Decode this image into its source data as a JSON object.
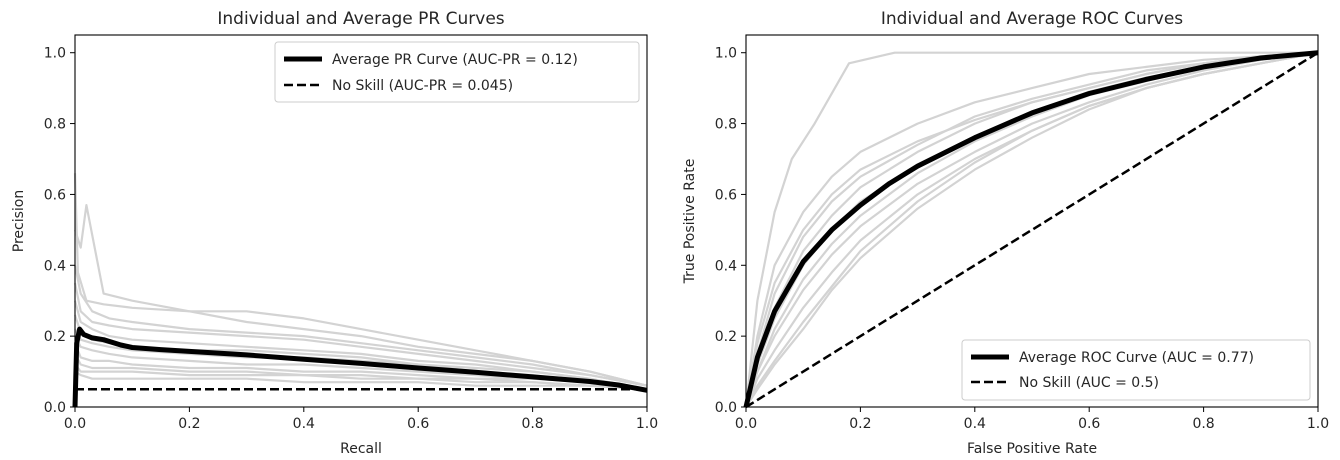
{
  "chart_data": [
    {
      "type": "line",
      "title": "Individual and Average PR Curves",
      "xlabel": "Recall",
      "ylabel": "Precision",
      "xlim": [
        0.0,
        1.0
      ],
      "ylim": [
        0.0,
        1.05
      ],
      "xticks": [
        "0.0",
        "0.2",
        "0.4",
        "0.6",
        "0.8",
        "1.0"
      ],
      "yticks": [
        "0.0",
        "0.2",
        "0.4",
        "0.6",
        "0.8",
        "1.0"
      ],
      "grid": false,
      "legend": {
        "placement": "upper right",
        "entries": [
          "Average PR Curve (AUC-PR = 0.12)",
          "No Skill (AUC-PR = 0.045)"
        ]
      },
      "colors": {
        "individual": "#d3d3d3",
        "average": "#000000",
        "no_skill": "#000000"
      },
      "series": [
        {
          "name": "Average PR Curve (AUC-PR = 0.12)",
          "style": "solid-thick",
          "x": [
            0.0,
            0.003,
            0.008,
            0.015,
            0.03,
            0.05,
            0.08,
            0.1,
            0.15,
            0.2,
            0.3,
            0.4,
            0.5,
            0.6,
            0.7,
            0.8,
            0.9,
            0.95,
            1.0
          ],
          "y": [
            0.0,
            0.18,
            0.22,
            0.205,
            0.195,
            0.19,
            0.175,
            0.168,
            0.162,
            0.157,
            0.147,
            0.135,
            0.123,
            0.11,
            0.098,
            0.085,
            0.072,
            0.062,
            0.047
          ]
        },
        {
          "name": "No Skill (AUC-PR = 0.045)",
          "style": "dashed",
          "x": [
            0.0,
            1.0
          ],
          "y": [
            0.05,
            0.05
          ]
        }
      ],
      "individual_curves": [
        {
          "x": [
            0.0,
            0.005,
            0.02,
            0.05,
            0.1,
            0.2,
            0.3,
            0.4,
            0.5,
            0.6,
            0.7,
            0.8,
            0.9,
            1.0
          ],
          "y": [
            0.66,
            0.38,
            0.3,
            0.29,
            0.28,
            0.27,
            0.27,
            0.25,
            0.22,
            0.19,
            0.16,
            0.13,
            0.1,
            0.06
          ]
        },
        {
          "x": [
            0.0,
            0.01,
            0.02,
            0.05,
            0.1,
            0.2,
            0.3,
            0.4,
            0.5,
            0.6,
            0.7,
            0.8,
            0.9,
            1.0
          ],
          "y": [
            0.5,
            0.45,
            0.57,
            0.32,
            0.3,
            0.27,
            0.24,
            0.22,
            0.2,
            0.17,
            0.15,
            0.13,
            0.1,
            0.06
          ]
        },
        {
          "x": [
            0.0,
            0.01,
            0.03,
            0.06,
            0.1,
            0.2,
            0.3,
            0.4,
            0.5,
            0.6,
            0.7,
            0.8,
            0.9,
            1.0
          ],
          "y": [
            0.4,
            0.32,
            0.27,
            0.25,
            0.24,
            0.22,
            0.21,
            0.2,
            0.18,
            0.16,
            0.14,
            0.12,
            0.09,
            0.06
          ]
        },
        {
          "x": [
            0.0,
            0.01,
            0.03,
            0.06,
            0.1,
            0.2,
            0.3,
            0.4,
            0.5,
            0.6,
            0.7,
            0.8,
            0.9,
            1.0
          ],
          "y": [
            0.3,
            0.24,
            0.22,
            0.2,
            0.19,
            0.18,
            0.17,
            0.16,
            0.15,
            0.13,
            0.12,
            0.1,
            0.08,
            0.05
          ]
        },
        {
          "x": [
            0.0,
            0.01,
            0.03,
            0.06,
            0.1,
            0.2,
            0.3,
            0.4,
            0.5,
            0.6,
            0.7,
            0.8,
            0.9,
            1.0
          ],
          "y": [
            0.2,
            0.17,
            0.16,
            0.15,
            0.14,
            0.13,
            0.12,
            0.12,
            0.11,
            0.1,
            0.09,
            0.08,
            0.07,
            0.05
          ]
        },
        {
          "x": [
            0.0,
            0.01,
            0.03,
            0.06,
            0.1,
            0.2,
            0.3,
            0.4,
            0.5,
            0.6,
            0.7,
            0.8,
            0.9,
            1.0
          ],
          "y": [
            0.12,
            0.1,
            0.1,
            0.1,
            0.1,
            0.09,
            0.09,
            0.09,
            0.08,
            0.08,
            0.07,
            0.07,
            0.06,
            0.05
          ]
        },
        {
          "x": [
            0.0,
            0.01,
            0.03,
            0.06,
            0.1,
            0.2,
            0.3,
            0.4,
            0.5,
            0.6,
            0.7,
            0.8,
            0.9,
            1.0
          ],
          "y": [
            0.26,
            0.21,
            0.19,
            0.18,
            0.17,
            0.16,
            0.16,
            0.15,
            0.14,
            0.12,
            0.11,
            0.1,
            0.08,
            0.05
          ]
        },
        {
          "x": [
            0.0,
            0.01,
            0.03,
            0.06,
            0.1,
            0.2,
            0.3,
            0.4,
            0.5,
            0.6,
            0.7,
            0.8,
            0.9,
            1.0
          ],
          "y": [
            0.18,
            0.14,
            0.13,
            0.13,
            0.12,
            0.11,
            0.11,
            0.1,
            0.1,
            0.09,
            0.08,
            0.08,
            0.07,
            0.05
          ]
        },
        {
          "x": [
            0.0,
            0.01,
            0.03,
            0.06,
            0.1,
            0.2,
            0.3,
            0.4,
            0.5,
            0.6,
            0.7,
            0.8,
            0.9,
            1.0
          ],
          "y": [
            0.35,
            0.27,
            0.24,
            0.23,
            0.22,
            0.21,
            0.2,
            0.19,
            0.17,
            0.15,
            0.13,
            0.11,
            0.09,
            0.06
          ]
        },
        {
          "x": [
            0.0,
            0.01,
            0.03,
            0.06,
            0.1,
            0.2,
            0.3,
            0.4,
            0.5,
            0.6,
            0.7,
            0.8,
            0.9,
            1.0
          ],
          "y": [
            0.15,
            0.12,
            0.11,
            0.11,
            0.11,
            0.1,
            0.1,
            0.09,
            0.09,
            0.08,
            0.08,
            0.07,
            0.06,
            0.05
          ]
        },
        {
          "x": [
            0.0,
            0.01,
            0.03,
            0.06,
            0.1,
            0.2,
            0.3,
            0.4,
            0.5,
            0.6,
            0.7,
            0.8,
            0.9,
            1.0
          ],
          "y": [
            0.22,
            0.19,
            0.18,
            0.17,
            0.16,
            0.15,
            0.14,
            0.14,
            0.13,
            0.12,
            0.1,
            0.09,
            0.07,
            0.05
          ]
        },
        {
          "x": [
            0.0,
            0.01,
            0.03,
            0.06,
            0.1,
            0.2,
            0.3,
            0.4,
            0.5,
            0.6,
            0.7,
            0.8,
            0.9,
            1.0
          ],
          "y": [
            0.1,
            0.09,
            0.08,
            0.08,
            0.08,
            0.08,
            0.08,
            0.07,
            0.07,
            0.07,
            0.06,
            0.06,
            0.06,
            0.05
          ]
        }
      ]
    },
    {
      "type": "line",
      "title": "Individual and Average ROC Curves",
      "xlabel": "False Positive Rate",
      "ylabel": "True Positive Rate",
      "xlim": [
        0.0,
        1.0
      ],
      "ylim": [
        0.0,
        1.05
      ],
      "xticks": [
        "0.0",
        "0.2",
        "0.4",
        "0.6",
        "0.8",
        "1.0"
      ],
      "yticks": [
        "0.0",
        "0.2",
        "0.4",
        "0.6",
        "0.8",
        "1.0"
      ],
      "grid": false,
      "legend": {
        "placement": "lower right",
        "entries": [
          "Average ROC Curve (AUC = 0.77)",
          "No Skill (AUC = 0.5)"
        ]
      },
      "colors": {
        "individual": "#d3d3d3",
        "average": "#000000",
        "no_skill": "#000000"
      },
      "series": [
        {
          "name": "Average ROC Curve (AUC = 0.77)",
          "style": "solid-thick",
          "x": [
            0.0,
            0.02,
            0.05,
            0.1,
            0.15,
            0.2,
            0.25,
            0.3,
            0.4,
            0.5,
            0.6,
            0.7,
            0.8,
            0.9,
            1.0
          ],
          "y": [
            0.0,
            0.14,
            0.27,
            0.41,
            0.5,
            0.57,
            0.63,
            0.68,
            0.76,
            0.83,
            0.885,
            0.925,
            0.96,
            0.985,
            1.0
          ]
        },
        {
          "name": "No Skill (AUC = 0.5)",
          "style": "dashed",
          "x": [
            0.0,
            1.0
          ],
          "y": [
            0.0,
            1.0
          ]
        }
      ],
      "individual_curves": [
        {
          "x": [
            0.0,
            0.02,
            0.05,
            0.08,
            0.12,
            0.18,
            0.26,
            0.4,
            0.6,
            0.8,
            1.0
          ],
          "y": [
            0.0,
            0.3,
            0.55,
            0.7,
            0.8,
            0.97,
            1.0,
            1.0,
            1.0,
            1.0,
            1.0
          ]
        },
        {
          "x": [
            0.0,
            0.02,
            0.05,
            0.1,
            0.15,
            0.2,
            0.3,
            0.4,
            0.5,
            0.6,
            0.7,
            0.8,
            0.9,
            1.0
          ],
          "y": [
            0.0,
            0.2,
            0.4,
            0.55,
            0.65,
            0.72,
            0.8,
            0.86,
            0.9,
            0.94,
            0.96,
            0.98,
            0.99,
            1.0
          ]
        },
        {
          "x": [
            0.0,
            0.02,
            0.05,
            0.1,
            0.15,
            0.2,
            0.3,
            0.4,
            0.5,
            0.6,
            0.7,
            0.8,
            0.9,
            1.0
          ],
          "y": [
            0.0,
            0.15,
            0.32,
            0.48,
            0.58,
            0.65,
            0.74,
            0.82,
            0.87,
            0.91,
            0.95,
            0.97,
            0.99,
            1.0
          ]
        },
        {
          "x": [
            0.0,
            0.02,
            0.05,
            0.1,
            0.15,
            0.2,
            0.3,
            0.4,
            0.5,
            0.6,
            0.7,
            0.8,
            0.9,
            1.0
          ],
          "y": [
            0.0,
            0.12,
            0.25,
            0.4,
            0.5,
            0.58,
            0.68,
            0.76,
            0.83,
            0.89,
            0.93,
            0.96,
            0.98,
            1.0
          ]
        },
        {
          "x": [
            0.0,
            0.02,
            0.05,
            0.1,
            0.15,
            0.2,
            0.3,
            0.4,
            0.5,
            0.6,
            0.7,
            0.8,
            0.9,
            1.0
          ],
          "y": [
            0.0,
            0.1,
            0.2,
            0.33,
            0.43,
            0.51,
            0.63,
            0.72,
            0.8,
            0.86,
            0.91,
            0.95,
            0.98,
            1.0
          ]
        },
        {
          "x": [
            0.0,
            0.02,
            0.05,
            0.1,
            0.15,
            0.2,
            0.3,
            0.4,
            0.5,
            0.6,
            0.7,
            0.8,
            0.9,
            1.0
          ],
          "y": [
            0.0,
            0.08,
            0.16,
            0.28,
            0.38,
            0.47,
            0.6,
            0.7,
            0.78,
            0.85,
            0.9,
            0.94,
            0.97,
            1.0
          ]
        },
        {
          "x": [
            0.0,
            0.02,
            0.05,
            0.1,
            0.15,
            0.2,
            0.3,
            0.4,
            0.5,
            0.6,
            0.7,
            0.8,
            0.9,
            1.0
          ],
          "y": [
            0.0,
            0.06,
            0.13,
            0.24,
            0.34,
            0.44,
            0.58,
            0.69,
            0.78,
            0.85,
            0.9,
            0.94,
            0.97,
            1.0
          ]
        },
        {
          "x": [
            0.0,
            0.02,
            0.05,
            0.1,
            0.15,
            0.2,
            0.3,
            0.4,
            0.5,
            0.6,
            0.7,
            0.8,
            0.9,
            1.0
          ],
          "y": [
            0.0,
            0.18,
            0.35,
            0.5,
            0.6,
            0.67,
            0.75,
            0.81,
            0.86,
            0.9,
            0.94,
            0.97,
            0.99,
            1.0
          ]
        },
        {
          "x": [
            0.0,
            0.02,
            0.05,
            0.1,
            0.15,
            0.2,
            0.3,
            0.4,
            0.5,
            0.6,
            0.7,
            0.8,
            0.9,
            1.0
          ],
          "y": [
            0.0,
            0.1,
            0.22,
            0.36,
            0.46,
            0.54,
            0.66,
            0.75,
            0.82,
            0.88,
            0.92,
            0.96,
            0.98,
            1.0
          ]
        },
        {
          "x": [
            0.0,
            0.02,
            0.05,
            0.1,
            0.15,
            0.2,
            0.3,
            0.4,
            0.5,
            0.6,
            0.7,
            0.8,
            0.9,
            1.0
          ],
          "y": [
            0.0,
            0.14,
            0.28,
            0.44,
            0.54,
            0.62,
            0.72,
            0.8,
            0.86,
            0.9,
            0.94,
            0.97,
            0.99,
            1.0
          ]
        },
        {
          "x": [
            0.0,
            0.02,
            0.05,
            0.1,
            0.15,
            0.2,
            0.3,
            0.4,
            0.5,
            0.6,
            0.7,
            0.8,
            0.9,
            1.0
          ],
          "y": [
            0.0,
            0.05,
            0.12,
            0.22,
            0.33,
            0.42,
            0.56,
            0.67,
            0.76,
            0.84,
            0.9,
            0.94,
            0.97,
            1.0
          ]
        }
      ]
    }
  ]
}
